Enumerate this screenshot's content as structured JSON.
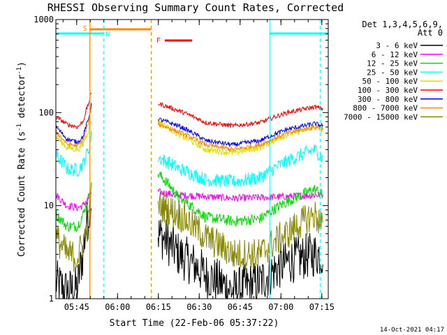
{
  "chart_data": {
    "type": "line",
    "title": "RHESSI Observing Summary Count Rates, Corrected",
    "xlabel": "Start Time (22-Feb-06 05:37:22)",
    "ylabel_main": "Corrected Count Rate (s",
    "ylabel_sup1": "-1",
    "ylabel_mid": " detector",
    "ylabel_sup2": "-1",
    "ylabel_end": ")",
    "yscale": "log",
    "ylim": [
      1,
      1000
    ],
    "xlim_minutes": [
      0,
      100
    ],
    "y_tick_labels": [
      "1",
      "10",
      "100",
      "1000"
    ],
    "y_tick_values": [
      1,
      10,
      100,
      1000
    ],
    "x_tick_labels": [
      "05:45",
      "06:00",
      "06:15",
      "06:30",
      "06:45",
      "07:00",
      "07:15"
    ],
    "x_tick_minutes": [
      7.63,
      22.63,
      37.63,
      52.63,
      67.63,
      82.63,
      97.63
    ],
    "legend": {
      "header1": "Det 1,3,4,5,6,9,",
      "header2": "Att 0",
      "placement": "right"
    },
    "series": [
      {
        "name": "3 - 6 keV",
        "color": "#000000"
      },
      {
        "name": "6 - 12 keV",
        "color": "#ff00ff"
      },
      {
        "name": "12 - 25 keV",
        "color": "#00dd00"
      },
      {
        "name": "25 - 50 keV",
        "color": "#00ffff"
      },
      {
        "name": "50 - 100 keV",
        "color": "#dddd00"
      },
      {
        "name": "100 - 300 keV",
        "color": "#ff0000"
      },
      {
        "name": "300 - 800 keV",
        "color": "#0000ff"
      },
      {
        "name": "800 - 7000 keV",
        "color": "#ff8800"
      },
      {
        "name": "7000 - 15000 keV",
        "color": "#888800"
      }
    ],
    "data_gap_minutes": [
      13.0,
      37.5
    ],
    "profiles": {
      "segment1_x": [
        0,
        4,
        8,
        10,
        12,
        13
      ],
      "segment2_x": [
        37.5,
        45,
        55,
        65,
        75,
        85,
        95,
        98
      ],
      "3 - 6 keV": {
        "seg1": [
          1.5,
          1.2,
          1.3,
          3,
          8,
          12
        ],
        "seg2": [
          5,
          3,
          1.8,
          1.2,
          1.5,
          2.5,
          3,
          3
        ]
      },
      "6 - 12 keV": {
        "seg1": [
          13,
          10,
          9.5,
          10,
          12,
          14
        ],
        "seg2": [
          14,
          13,
          12.5,
          12,
          12.2,
          12.5,
          13,
          13
        ]
      },
      "12 - 25 keV": {
        "seg1": [
          8,
          6,
          6,
          8,
          12,
          16
        ],
        "seg2": [
          22,
          12,
          7.5,
          6.8,
          7.2,
          11,
          15,
          13
        ]
      },
      "25 - 50 keV": {
        "seg1": [
          35,
          25,
          24,
          28,
          40,
          55
        ],
        "seg2": [
          33,
          25,
          19,
          18,
          20,
          30,
          40,
          32
        ]
      },
      "50 - 100 keV": {
        "seg1": [
          55,
          42,
          40,
          45,
          65,
          85
        ],
        "seg2": [
          80,
          58,
          40,
          37,
          42,
          58,
          70,
          62
        ]
      },
      "100 - 300 keV": {
        "seg1": [
          90,
          75,
          70,
          80,
          125,
          160
        ],
        "seg2": [
          125,
          105,
          78,
          72,
          78,
          100,
          115,
          110
        ]
      },
      "300 - 800 keV": {
        "seg1": [
          70,
          52,
          48,
          55,
          85,
          120
        ],
        "seg2": [
          85,
          72,
          50,
          45,
          50,
          66,
          76,
          72
        ]
      },
      "800 - 7000 keV": {
        "seg1": [
          62,
          46,
          44,
          50,
          78,
          105
        ],
        "seg2": [
          75,
          62,
          45,
          40,
          45,
          60,
          70,
          68
        ]
      },
      "7000 - 15000 keV": {
        "seg1": [
          4.5,
          3,
          2.8,
          4,
          6.5,
          11
        ],
        "seg2": [
          10,
          8,
          4.5,
          3,
          3,
          5,
          8,
          6
        ]
      }
    },
    "events": {
      "saa_label": "S",
      "night_label": "N",
      "flare_label": "F",
      "saa_minutes": [
        12.5,
        35
      ],
      "night_minutes": [
        [
          0,
          17.5
        ],
        [
          78.5,
          100
        ]
      ],
      "flare_minutes": [
        40,
        50
      ],
      "saa_color": "#ff8800",
      "night_color": "#00ffff",
      "flare_color": "#ff0000"
    },
    "footer_date": "14-Oct-2021 04:17"
  }
}
